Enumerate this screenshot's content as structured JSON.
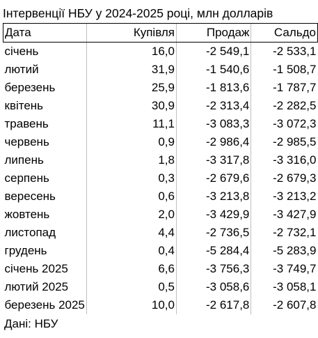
{
  "title": "Інтервенції НБУ у 2024-2025 році, млн долларів",
  "table": {
    "headers": [
      "Дата",
      "Купівля",
      "Продаж",
      "Сальдо"
    ],
    "rows": [
      [
        "січень",
        "16,0",
        "-2 549,1",
        "-2 533,1"
      ],
      [
        "лютий",
        "31,9",
        "-1 540,6",
        "-1 508,7"
      ],
      [
        "березень",
        "25,9",
        "-1 813,6",
        "-1 787,7"
      ],
      [
        "квітень",
        "30,9",
        "-2 313,4",
        "-2 282,5"
      ],
      [
        "травень",
        "11,1",
        "-3 083,3",
        "-3 072,3"
      ],
      [
        "червень",
        "0,9",
        "-2 986,4",
        "-2 985,5"
      ],
      [
        "липень",
        "1,8",
        "-3 317,8",
        "-3 316,0"
      ],
      [
        "серпень",
        "0,3",
        "-2 679,6",
        "-2 679,3"
      ],
      [
        "вересень",
        "0,6",
        "-3 213,8",
        "-3 213,2"
      ],
      [
        "жовтень",
        "2,0",
        "-3 429,9",
        "-3 427,9"
      ],
      [
        "листопад",
        "4,4",
        "-2 736,5",
        "-2 732,1"
      ],
      [
        "грудень",
        "0,4",
        "-5 284,4",
        "-5 283,9"
      ],
      [
        "січень 2025",
        "6,6",
        "-3 756,3",
        "-3 749,7"
      ],
      [
        "лютий 2025",
        "0,5",
        "-3 058,6",
        "-3 058,1"
      ],
      [
        "березень 2025",
        "10,0",
        "-2 617,8",
        "-2 607,8"
      ]
    ]
  },
  "source": "Дані: НБУ"
}
